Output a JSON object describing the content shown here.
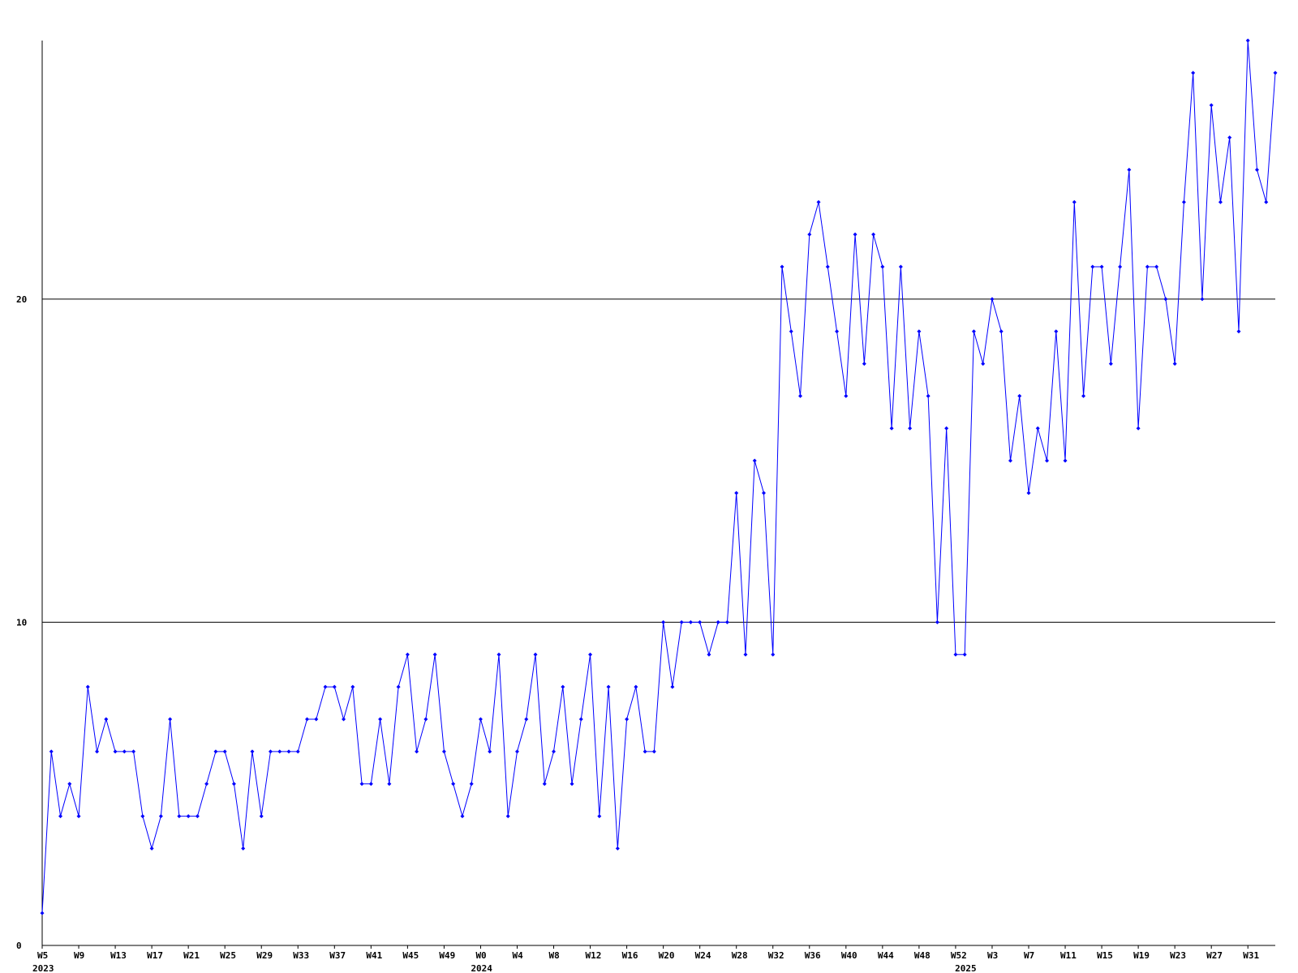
{
  "chart_data": {
    "type": "line",
    "categories": [
      "W5",
      null,
      null,
      null,
      "W9",
      null,
      null,
      null,
      "W13",
      null,
      null,
      null,
      "W17",
      null,
      null,
      null,
      "W21",
      null,
      null,
      null,
      "W25",
      null,
      null,
      null,
      "W29",
      null,
      null,
      null,
      "W33",
      null,
      null,
      null,
      "W37",
      null,
      null,
      null,
      "W41",
      null,
      null,
      null,
      "W45",
      null,
      null,
      null,
      "W49",
      null,
      null,
      null,
      "W0",
      null,
      null,
      null,
      "W4",
      null,
      null,
      null,
      "W8",
      null,
      null,
      null,
      "W12",
      null,
      null,
      null,
      "W16",
      null,
      null,
      null,
      "W20",
      null,
      null,
      null,
      "W24",
      null,
      null,
      null,
      "W28",
      null,
      null,
      null,
      "W32",
      null,
      null,
      null,
      "W36",
      null,
      null,
      null,
      "W40",
      null,
      null,
      null,
      "W44",
      null,
      null,
      null,
      "W48",
      null,
      null,
      null,
      "W52",
      null,
      null,
      null,
      "W3",
      null,
      null,
      null,
      "W7",
      null,
      null,
      null,
      "W11",
      null,
      null,
      null,
      "W15",
      null,
      null,
      null,
      "W19",
      null,
      null,
      null,
      "W23",
      null,
      null,
      null,
      "W27",
      null,
      null,
      null,
      "W31",
      null,
      null,
      null
    ],
    "category_years": [
      "2023",
      null,
      null,
      null,
      null,
      null,
      null,
      null,
      null,
      null,
      null,
      null,
      null,
      null,
      null,
      null,
      null,
      null,
      null,
      null,
      null,
      null,
      null,
      null,
      null,
      null,
      null,
      null,
      null,
      null,
      null,
      null,
      null,
      null,
      null,
      null,
      null,
      null,
      null,
      null,
      null,
      null,
      null,
      null,
      null,
      null,
      null,
      null,
      "2024",
      null,
      null,
      null,
      null,
      null,
      null,
      null,
      null,
      null,
      null,
      null,
      null,
      null,
      null,
      null,
      null,
      null,
      null,
      null,
      null,
      null,
      null,
      null,
      null,
      null,
      null,
      null,
      null,
      null,
      null,
      null,
      null,
      null,
      null,
      null,
      null,
      null,
      null,
      null,
      null,
      null,
      null,
      null,
      null,
      null,
      null,
      null,
      null,
      null,
      null,
      null,
      null,
      "2025",
      null,
      null,
      null,
      null,
      null,
      null,
      null,
      null,
      null,
      null,
      null,
      null,
      null,
      null,
      null,
      null,
      null,
      null,
      null,
      null,
      null,
      null,
      null,
      null,
      null,
      null,
      null,
      null,
      null,
      null,
      null,
      null,
      null,
      null
    ],
    "series": [
      {
        "color": "#0000ff",
        "values": [
          1,
          6,
          4,
          5,
          4,
          8,
          6,
          7,
          6,
          6,
          6,
          4,
          3,
          4,
          7,
          4,
          4,
          4,
          5,
          6,
          6,
          5,
          3,
          6,
          4,
          6,
          6,
          6,
          6,
          7,
          7,
          8,
          8,
          7,
          8,
          5,
          5,
          7,
          5,
          8,
          9,
          6,
          7,
          9,
          6,
          5,
          4,
          5,
          7,
          6,
          9,
          4,
          6,
          7,
          9,
          5,
          6,
          8,
          5,
          7,
          9,
          4,
          8,
          3,
          7,
          8,
          6,
          6,
          10,
          8,
          10,
          10,
          10,
          9,
          10,
          10,
          14,
          9,
          15,
          14,
          9,
          21,
          19,
          17,
          22,
          23,
          21,
          19,
          17,
          22,
          18,
          22,
          21,
          16,
          21,
          16,
          19,
          17,
          10,
          16,
          9,
          9,
          19,
          18,
          20,
          19,
          15,
          17,
          14,
          16,
          15,
          19,
          15,
          23,
          17,
          21,
          21,
          18,
          21,
          24,
          16,
          21,
          21,
          20,
          18,
          23,
          27,
          20,
          26,
          23,
          25,
          19,
          28,
          24,
          23,
          27
        ]
      }
    ],
    "ylim": [
      0,
      28
    ],
    "yticks": [
      0,
      10,
      20
    ],
    "grid": true
  }
}
